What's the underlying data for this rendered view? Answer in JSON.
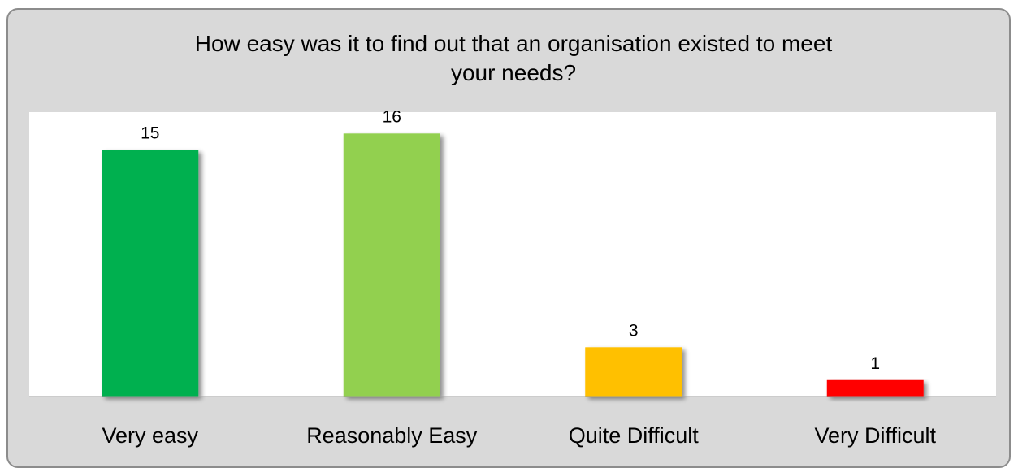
{
  "chart_data": {
    "type": "bar",
    "title_line1": "How easy was it to find out that an organisation existed to meet",
    "title_line2": "your needs?",
    "categories": [
      "Very easy",
      "Reasonably Easy",
      "Quite Difficult",
      "Very Difficult"
    ],
    "values": [
      15,
      16,
      3,
      1
    ],
    "colors": [
      "#00b050",
      "#92d050",
      "#ffc000",
      "#ff0000"
    ],
    "ylim": [
      0,
      17.3
    ],
    "grid": false,
    "legend": "none",
    "data_labels": true
  }
}
